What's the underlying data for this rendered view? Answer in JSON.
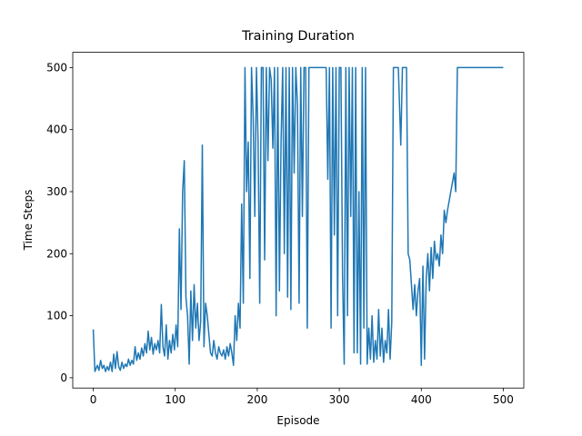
{
  "chart_data": {
    "type": "line",
    "title": "Training Duration",
    "x_label": "Episode",
    "y_label": "Time Steps",
    "xlim": [
      -25,
      525
    ],
    "ylim": [
      -16.6,
      524.6
    ],
    "xticks": [
      0,
      100,
      200,
      300,
      400,
      500
    ],
    "yticks": [
      0,
      100,
      200,
      300,
      400,
      500
    ],
    "color": "#1f77b4",
    "x": [
      0,
      2,
      5,
      7,
      9,
      11,
      13,
      15,
      17,
      19,
      21,
      23,
      25,
      27,
      29,
      31,
      33,
      35,
      37,
      39,
      41,
      43,
      45,
      47,
      49,
      51,
      53,
      55,
      57,
      59,
      61,
      63,
      65,
      67,
      69,
      71,
      73,
      75,
      77,
      79,
      81,
      83,
      85,
      87,
      89,
      91,
      93,
      95,
      97,
      99,
      101,
      103,
      105,
      107,
      109,
      111,
      113,
      115,
      117,
      119,
      121,
      123,
      125,
      127,
      129,
      131,
      133,
      135,
      137,
      139,
      141,
      143,
      145,
      147,
      149,
      151,
      153,
      155,
      157,
      159,
      161,
      163,
      165,
      167,
      169,
      171,
      173,
      175,
      177,
      179,
      181,
      183,
      185,
      187,
      189,
      191,
      193,
      195,
      197,
      199,
      201,
      203,
      205,
      207,
      209,
      211,
      213,
      215,
      217,
      219,
      221,
      223,
      225,
      227,
      229,
      231,
      233,
      235,
      237,
      239,
      241,
      243,
      245,
      247,
      249,
      251,
      253,
      255,
      257,
      259,
      261,
      263,
      266,
      269,
      272,
      275,
      278,
      281,
      284,
      286,
      288,
      290,
      292,
      294,
      296,
      298,
      300,
      302,
      304,
      306,
      308,
      310,
      312,
      314,
      316,
      318,
      320,
      322,
      324,
      326,
      328,
      330,
      332,
      334,
      336,
      338,
      340,
      342,
      344,
      346,
      348,
      350,
      352,
      354,
      356,
      358,
      360,
      362,
      364,
      366,
      369,
      372,
      375,
      377,
      380,
      382,
      384,
      386,
      388,
      390,
      392,
      394,
      396,
      398,
      400,
      402,
      404,
      406,
      408,
      410,
      412,
      414,
      416,
      418,
      420,
      422,
      424,
      426,
      428,
      430,
      432,
      436,
      440,
      442,
      444,
      450,
      460,
      470,
      480,
      490,
      500
    ],
    "values": [
      78,
      10,
      20,
      12,
      28,
      15,
      20,
      10,
      18,
      12,
      25,
      10,
      38,
      15,
      42,
      18,
      12,
      25,
      15,
      22,
      18,
      30,
      20,
      28,
      22,
      50,
      28,
      40,
      30,
      48,
      35,
      55,
      40,
      75,
      45,
      65,
      38,
      55,
      45,
      60,
      40,
      118,
      50,
      35,
      85,
      30,
      60,
      40,
      70,
      45,
      85,
      50,
      240,
      110,
      300,
      350,
      130,
      100,
      22,
      140,
      60,
      150,
      80,
      120,
      60,
      90,
      375,
      50,
      120,
      100,
      70,
      40,
      35,
      60,
      40,
      30,
      50,
      40,
      35,
      45,
      30,
      50,
      35,
      55,
      40,
      20,
      100,
      60,
      120,
      80,
      280,
      120,
      500,
      300,
      380,
      160,
      500,
      420,
      260,
      500,
      380,
      120,
      500,
      500,
      190,
      500,
      350,
      500,
      480,
      370,
      500,
      100,
      500,
      140,
      380,
      500,
      200,
      500,
      130,
      500,
      110,
      500,
      330,
      500,
      440,
      120,
      500,
      260,
      500,
      500,
      80,
      500,
      500,
      500,
      500,
      500,
      500,
      500,
      500,
      320,
      500,
      80,
      500,
      230,
      500,
      100,
      500,
      500,
      165,
      22,
      500,
      100,
      500,
      260,
      500,
      40,
      500,
      40,
      300,
      22,
      500,
      80,
      500,
      22,
      80,
      30,
      100,
      25,
      60,
      30,
      110,
      35,
      80,
      25,
      60,
      40,
      110,
      30,
      90,
      500,
      500,
      500,
      375,
      500,
      500,
      500,
      200,
      190,
      150,
      110,
      150,
      100,
      140,
      160,
      20,
      180,
      30,
      160,
      200,
      140,
      210,
      160,
      220,
      190,
      200,
      180,
      230,
      200,
      270,
      250,
      270,
      300,
      330,
      300,
      500,
      500,
      500,
      500,
      500,
      500,
      500
    ]
  }
}
